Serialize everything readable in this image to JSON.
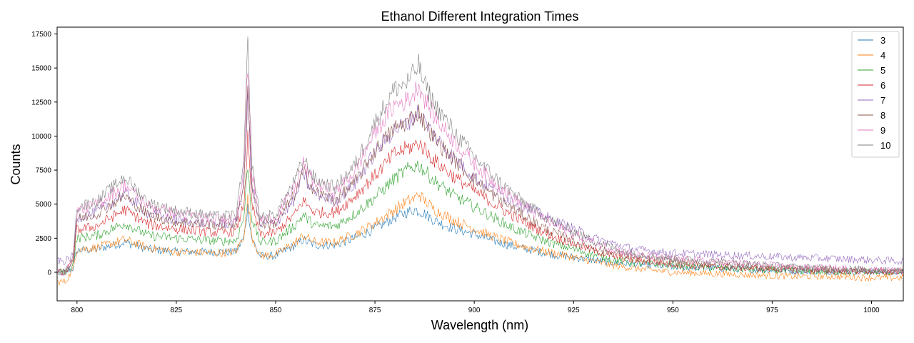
{
  "chart_data": {
    "type": "line",
    "title": "Ethanol Different Integration Times",
    "xlabel": "Wavelength (nm)",
    "ylabel": "Counts",
    "xlim": [
      795,
      1008
    ],
    "ylim": [
      -2100,
      18000
    ],
    "xticks": [
      800,
      825,
      850,
      875,
      900,
      925,
      950,
      975,
      1000
    ],
    "yticks": [
      0,
      2500,
      5000,
      7500,
      10000,
      12500,
      15000,
      17500
    ],
    "grid": false,
    "legend_position": "top-right",
    "series_shape": {
      "note_x": [
        795,
        797,
        799,
        800,
        805,
        812,
        818,
        825,
        835,
        840,
        842,
        843,
        844,
        846,
        850,
        855,
        857,
        858,
        860,
        865,
        870,
        875,
        880,
        883,
        885,
        886,
        887,
        890,
        895,
        900,
        905,
        910,
        915,
        920,
        925,
        930,
        935,
        940,
        950,
        960,
        970,
        980,
        990,
        1000,
        1008
      ]
    },
    "series": [
      {
        "name": "3",
        "color": "#1f77b4",
        "values": [
          0,
          0,
          300,
          1600,
          1700,
          2200,
          1700,
          1500,
          1500,
          1500,
          2500,
          4800,
          2500,
          1200,
          1200,
          2000,
          2400,
          2200,
          2000,
          2000,
          2500,
          3200,
          4000,
          4400,
          4600,
          4500,
          4400,
          3800,
          3200,
          2800,
          2300,
          1900,
          1600,
          1300,
          1100,
          900,
          700,
          600,
          400,
          300,
          200,
          100,
          50,
          30,
          0
        ]
      },
      {
        "name": "4",
        "color": "#ff7f0e",
        "values": [
          -700,
          -700,
          200,
          1700,
          1800,
          2400,
          1800,
          1500,
          1400,
          1500,
          2700,
          5400,
          2700,
          1200,
          1300,
          2200,
          2700,
          2500,
          2200,
          2200,
          2800,
          3600,
          4600,
          5200,
          5400,
          5800,
          5400,
          4600,
          3800,
          3200,
          2600,
          2100,
          1700,
          1400,
          1100,
          800,
          500,
          300,
          0,
          -100,
          -200,
          -300,
          -300,
          -400,
          -400
        ]
      },
      {
        "name": "5",
        "color": "#2ca02c",
        "values": [
          0,
          0,
          600,
          2500,
          2700,
          3600,
          2700,
          2500,
          2300,
          2300,
          4000,
          8000,
          4000,
          2200,
          2300,
          3500,
          4200,
          3900,
          3400,
          3400,
          4300,
          5500,
          6900,
          7500,
          7800,
          7900,
          7600,
          6700,
          5600,
          4800,
          4000,
          3200,
          2600,
          2100,
          1700,
          1300,
          900,
          700,
          500,
          300,
          200,
          100,
          50,
          30,
          0
        ]
      },
      {
        "name": "6",
        "color": "#d62728",
        "values": [
          0,
          0,
          800,
          3100,
          3400,
          4600,
          3500,
          3200,
          2900,
          3000,
          5000,
          9800,
          5000,
          2800,
          2900,
          4300,
          5300,
          4900,
          4400,
          4400,
          5600,
          7100,
          8700,
          9100,
          9300,
          9500,
          9200,
          8200,
          7000,
          6000,
          5000,
          4100,
          3300,
          2600,
          2100,
          1600,
          1200,
          900,
          600,
          400,
          300,
          200,
          100,
          50,
          0
        ]
      },
      {
        "name": "7",
        "color": "#9467bd",
        "values": [
          800,
          800,
          1200,
          4000,
          4400,
          5800,
          4300,
          3800,
          3500,
          3600,
          6400,
          12800,
          6400,
          3500,
          3600,
          5400,
          7400,
          6500,
          5800,
          5200,
          6500,
          8800,
          10500,
          10900,
          11500,
          11800,
          11300,
          10000,
          8400,
          7000,
          6000,
          5200,
          4500,
          3800,
          3200,
          2500,
          2100,
          1700,
          1400,
          1300,
          1200,
          1100,
          1000,
          900,
          800
        ]
      },
      {
        "name": "8",
        "color": "#8c564b",
        "values": [
          0,
          0,
          900,
          3900,
          4300,
          5600,
          4200,
          3700,
          3500,
          3600,
          6600,
          13400,
          6600,
          3500,
          3600,
          5800,
          7400,
          6800,
          5900,
          5300,
          6600,
          8900,
          10600,
          11000,
          11500,
          11800,
          11200,
          9800,
          8200,
          6800,
          5600,
          4600,
          3700,
          2900,
          2300,
          1800,
          1400,
          1100,
          800,
          600,
          400,
          300,
          200,
          100,
          50
        ]
      },
      {
        "name": "9",
        "color": "#e377c2",
        "values": [
          0,
          0,
          1000,
          4500,
          5000,
          6400,
          4900,
          4300,
          3900,
          4000,
          7400,
          15400,
          7400,
          3900,
          4000,
          6300,
          8000,
          7300,
          6500,
          5900,
          7400,
          10300,
          12300,
          12600,
          13200,
          13900,
          13000,
          11400,
          9600,
          8000,
          6600,
          5400,
          4400,
          3500,
          2800,
          2200,
          1700,
          1300,
          1000,
          800,
          600,
          400,
          300,
          200,
          100
        ]
      },
      {
        "name": "10",
        "color": "#7f7f7f",
        "values": [
          0,
          0,
          1000,
          4800,
          5200,
          7000,
          5100,
          4500,
          4100,
          4200,
          8000,
          17000,
          8000,
          4100,
          4200,
          6800,
          8300,
          7800,
          6800,
          6200,
          7900,
          11000,
          13500,
          13900,
          14700,
          15300,
          14100,
          12300,
          10300,
          8500,
          7000,
          5700,
          4600,
          3700,
          3000,
          2300,
          1800,
          1400,
          1000,
          800,
          600,
          400,
          300,
          200,
          100
        ]
      }
    ]
  }
}
